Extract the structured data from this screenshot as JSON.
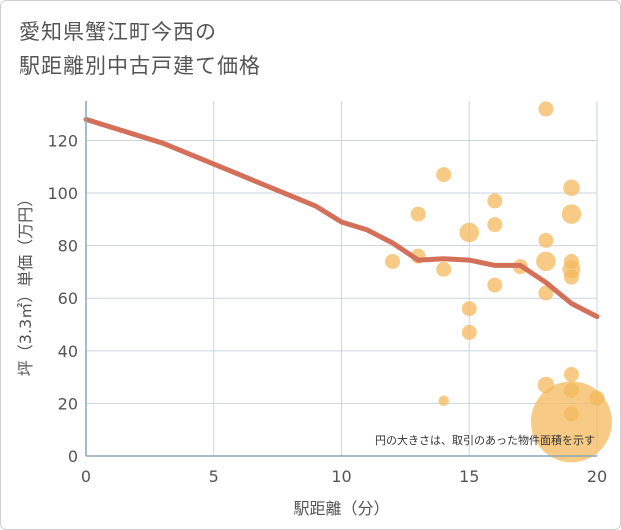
{
  "title_line1": "愛知県蟹江町今西の",
  "title_line2": "駅距離別中古戸建て価格",
  "chart_data": {
    "type": "scatter",
    "title": "愛知県蟹江町今西の駅距離別中古戸建て価格",
    "xlabel": "駅距離（分）",
    "ylabel": "坪（3.3㎡）単価（万円）",
    "xlim": [
      0,
      20
    ],
    "ylim": [
      0,
      135
    ],
    "xticks": [
      0,
      5,
      10,
      15,
      20
    ],
    "yticks": [
      0,
      20,
      40,
      60,
      80,
      100,
      120
    ],
    "grid": true,
    "note": "円の大きさは、取引のあった物件面積を示す",
    "colors": {
      "points": "#f4b95c",
      "trend": "#d4705a",
      "grid": "#c9d6e0",
      "axis": "#8aa6b8"
    },
    "points": [
      {
        "x": 12,
        "y": 74,
        "size": 1
      },
      {
        "x": 13,
        "y": 92,
        "size": 1
      },
      {
        "x": 13,
        "y": 76,
        "size": 1
      },
      {
        "x": 14,
        "y": 107,
        "size": 1
      },
      {
        "x": 14,
        "y": 71,
        "size": 1
      },
      {
        "x": 14,
        "y": 21,
        "size": 0.7
      },
      {
        "x": 15,
        "y": 85,
        "size": 1.3
      },
      {
        "x": 15,
        "y": 56,
        "size": 1
      },
      {
        "x": 15,
        "y": 47,
        "size": 1
      },
      {
        "x": 16,
        "y": 97,
        "size": 1
      },
      {
        "x": 16,
        "y": 88,
        "size": 1
      },
      {
        "x": 16,
        "y": 65,
        "size": 1
      },
      {
        "x": 17,
        "y": 72,
        "size": 1
      },
      {
        "x": 18,
        "y": 132,
        "size": 1
      },
      {
        "x": 18,
        "y": 82,
        "size": 1
      },
      {
        "x": 18,
        "y": 74,
        "size": 1.3
      },
      {
        "x": 18,
        "y": 62,
        "size": 1
      },
      {
        "x": 18,
        "y": 27,
        "size": 1.1
      },
      {
        "x": 19,
        "y": 102,
        "size": 1.1
      },
      {
        "x": 19,
        "y": 92,
        "size": 1.3
      },
      {
        "x": 19,
        "y": 74,
        "size": 1
      },
      {
        "x": 19,
        "y": 71,
        "size": 1.2
      },
      {
        "x": 19,
        "y": 68,
        "size": 1
      },
      {
        "x": 19,
        "y": 31,
        "size": 1
      },
      {
        "x": 19,
        "y": 25,
        "size": 1
      },
      {
        "x": 19,
        "y": 16,
        "size": 1
      },
      {
        "x": 20,
        "y": 22,
        "size": 1
      },
      {
        "x": 19,
        "y": 13,
        "size": 5.4
      }
    ],
    "trend": {
      "x": [
        0,
        3,
        6,
        9,
        10,
        11,
        12,
        13,
        14,
        15,
        16,
        17,
        18,
        19,
        20
      ],
      "y": [
        128,
        119,
        107,
        95,
        89,
        86,
        81,
        74.5,
        75,
        74.5,
        72.5,
        72.5,
        66,
        58,
        53
      ]
    }
  }
}
